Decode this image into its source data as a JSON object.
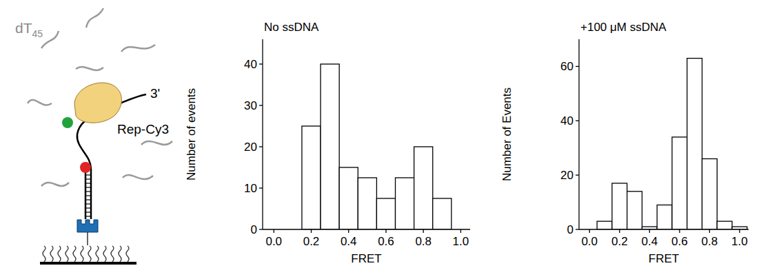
{
  "chart_data": [
    {
      "type": "histogram",
      "title": "No ssDNA",
      "x_label": "FRET",
      "y_label": "Number of events",
      "bins": [
        0.15,
        0.25,
        0.35,
        0.45,
        0.55,
        0.65,
        0.75,
        0.85,
        0.95
      ],
      "values": [
        25,
        40,
        15,
        12.5,
        7.5,
        12.5,
        20,
        7.5
      ],
      "color": "#ffffff",
      "xlim": [
        -0.06,
        1.05
      ],
      "xticks": [
        {
          "value": 0,
          "label": "0.0"
        },
        {
          "value": 0.2,
          "label": "0.2"
        },
        {
          "value": 0.4,
          "label": "0.4"
        },
        {
          "value": 0.6,
          "label": "0.6"
        },
        {
          "value": 0.8,
          "label": "0.8"
        },
        {
          "value": 1,
          "label": "1.0"
        }
      ],
      "ylim": [
        0,
        46
      ],
      "yticks": [
        0,
        10,
        20,
        30,
        40
      ]
    },
    {
      "type": "histogram",
      "title": "+100 μM ssDNA",
      "x_label": "FRET",
      "y_label": "Number of Events",
      "bins": [
        0.05,
        0.15,
        0.25,
        0.35,
        0.45,
        0.55,
        0.65,
        0.75,
        0.85,
        0.95,
        1.05
      ],
      "values": [
        3,
        17,
        14,
        1,
        9,
        34,
        63,
        26,
        3,
        1
      ],
      "color": "#ffffff",
      "xlim": [
        -0.07,
        1.06
      ],
      "xticks": [
        {
          "value": 0,
          "label": "0.0"
        },
        {
          "value": 0.2,
          "label": "0.2"
        },
        {
          "value": 0.4,
          "label": "0.4"
        },
        {
          "value": 0.6,
          "label": "0.6"
        },
        {
          "value": 0.8,
          "label": "0.8"
        },
        {
          "value": 1,
          "label": "1.0"
        }
      ],
      "ylim": [
        0,
        70
      ],
      "yticks": [
        0,
        20,
        40,
        60
      ]
    }
  ],
  "schematic": {
    "labels": [
      "dT45",
      "Rep-Cy3",
      "3'"
    ]
  }
}
